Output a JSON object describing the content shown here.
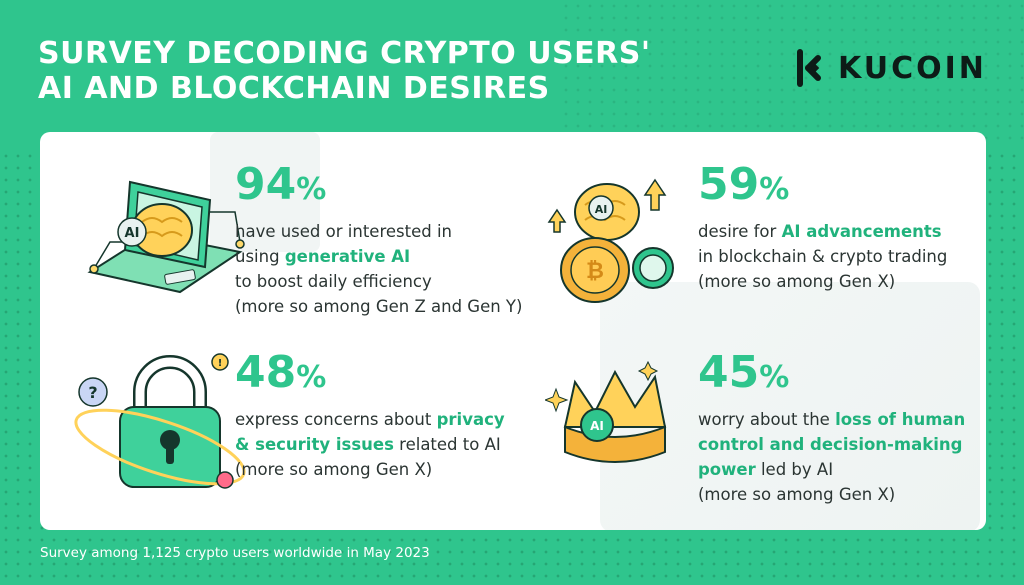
{
  "header": {
    "title_line1": "SURVEY DECODING CRYPTO USERS'",
    "title_line2": "AI AND BLOCKCHAIN DESIRES"
  },
  "logo": {
    "text": "KUCOIN",
    "icon": "kucoin-logo-icon"
  },
  "stats": [
    {
      "value": "94",
      "unit": "%",
      "line1": "have used or interested in",
      "line2_pre": "using ",
      "line2_hl": "generative AI",
      "line3": "to boost daily efficiency",
      "line4": "(more so among Gen Z and Gen Y)",
      "icon": "laptop-ai-brain-icon"
    },
    {
      "value": "59",
      "unit": "%",
      "line1_pre": "desire for ",
      "line1_hl": "AI advancements",
      "line2": "in blockchain & crypto trading",
      "line3": "(more so among Gen X)",
      "icon": "ai-brain-coins-icon"
    },
    {
      "value": "48",
      "unit": "%",
      "line1_pre": "express concerns about ",
      "line1_hl": "privacy",
      "line2_hl": "& security issues",
      "line2_post": " related to AI",
      "line3": "(more so among Gen X)",
      "icon": "padlock-question-icon"
    },
    {
      "value": "45",
      "unit": "%",
      "line1_pre": "worry about the ",
      "line1_hl": "loss of human",
      "line2_hl": "control and decision-making",
      "line3_hl": "power",
      "line3_post": " led by AI",
      "line4": "(more so among Gen X)",
      "icon": "ai-crown-icon"
    }
  ],
  "footer": {
    "text": "Survey among 1,125 crypto users worldwide in May 2023"
  },
  "colors": {
    "brand_green": "#2fc58d",
    "highlight": "#20b27c",
    "text_dark": "#2b3533"
  }
}
